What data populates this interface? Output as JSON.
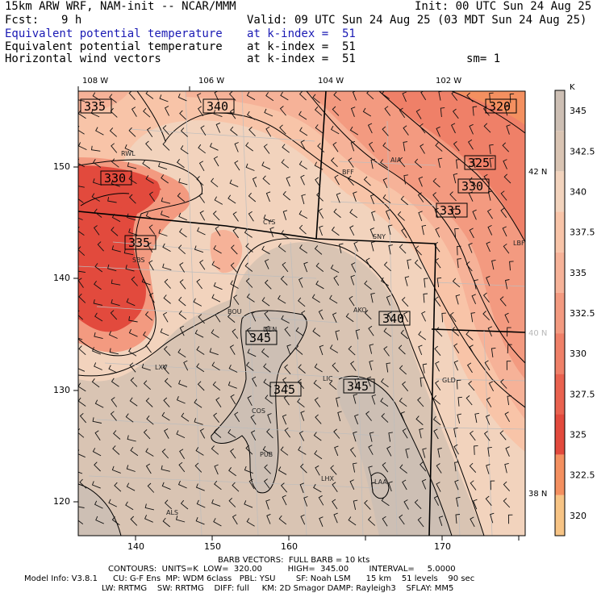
{
  "header": {
    "model_line": "15km ARW WRF, NAM-init -- NCAR/MMM",
    "init_line": "Init: 00 UTC Sun 24 Aug 25",
    "fcst_label": "Fcst:",
    "fcst_value": "9 h",
    "valid_line": "Valid: 09 UTC Sun 24 Aug 25 (03 MDT Sun 24 Aug 25)",
    "fields": [
      {
        "name": "Equivalent potential temperature",
        "level": "at k-index =  51",
        "color": "#1a1ab4"
      },
      {
        "name": "Equivalent potential temperature",
        "level": "at k-index =  51",
        "color": "#000000"
      },
      {
        "name": "Horizontal wind vectors",
        "level": "at k-index =  51",
        "color": "#000000"
      }
    ],
    "smoothing": "sm= 1"
  },
  "top_axis": [
    "108 W",
    "106 W",
    "104 W",
    "102 W"
  ],
  "bottom_axis": [
    "140",
    "150",
    "160",
    "170"
  ],
  "left_axis": [
    "150",
    "140",
    "130",
    "120"
  ],
  "right_axis": [
    {
      "label": "42 N",
      "color": "#000000"
    },
    {
      "label": "40 N",
      "color": "#b8b8b8"
    },
    {
      "label": "38 N",
      "color": "#000000"
    }
  ],
  "colorbar": {
    "unit": "K",
    "levels": [
      "345",
      "342.5",
      "340",
      "337.5",
      "335",
      "332.5",
      "330",
      "327.5",
      "325",
      "322.5",
      "320"
    ],
    "colors": [
      "#cdbfb4",
      "#d9c4b3",
      "#f2d3bd",
      "#f8c4a8",
      "#f6b298",
      "#f39a80",
      "#ef8068",
      "#e9624f",
      "#e24a3d",
      "#f49060",
      "#f7c485"
    ]
  },
  "contour_labels": [
    "335",
    "340",
    "320",
    "330",
    "325",
    "330",
    "335",
    "335",
    "345",
    "340",
    "345",
    "345"
  ],
  "cities": [
    "RWL",
    "BFF",
    "AIA",
    "CYS",
    "SNY",
    "SBS",
    "LBF",
    "BOU",
    "AKO",
    "DEN",
    "LXV",
    "LIC",
    "GLD",
    "COS",
    "PUB",
    "LHX",
    "LAA",
    "ALS"
  ],
  "footer": {
    "barb": "BARB VECTORS:  FULL BARB = 10 kts",
    "contours": "CONTOURS:  UNITS=K  LOW=  320.00          HIGH=  345.00        INTERVAL=     5.0000",
    "model_info": "Model Info: V3.8.1      CU: G-F Ens  MP: WDM 6class   PBL: YSU        SF: Noah LSM      15 km    51 levels    90 sec",
    "physics": "LW: RRTMG    SW: RRTMG    DIFF: full     KM: 2D Smagor DAMP: Rayleigh3    SFLAY: MM5"
  }
}
